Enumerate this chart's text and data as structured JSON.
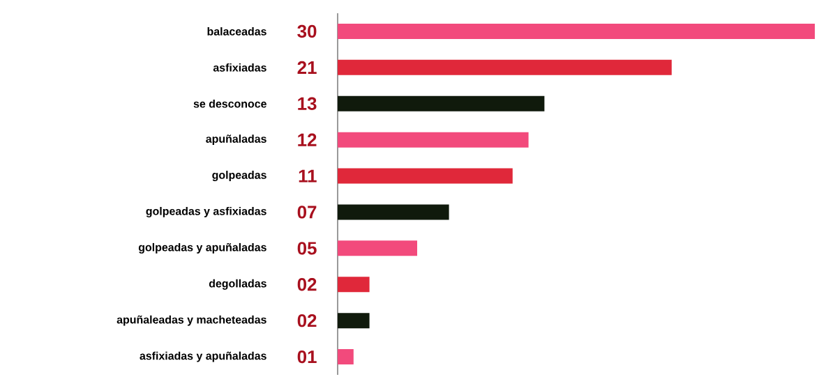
{
  "chart_data": {
    "type": "bar",
    "orientation": "horizontal",
    "categories": [
      "balaceadas",
      "asfixiadas",
      "se desconoce",
      "apuñaladas",
      "golpeadas",
      "golpeadas y asfixiadas",
      "golpeadas y apuñaladas",
      "degolladas",
      "apuñaleadas y macheteadas",
      "asfixiadas y apuñaladas"
    ],
    "values": [
      30,
      21,
      13,
      12,
      11,
      7,
      5,
      2,
      2,
      1
    ],
    "value_labels": [
      "30",
      "21",
      "13",
      "12",
      "11",
      "07",
      "05",
      "02",
      "02",
      "01"
    ],
    "colors": [
      "#f24a7c",
      "#e0283a",
      "#101a0c",
      "#f24a7c",
      "#e0283a",
      "#101a0c",
      "#f24a7c",
      "#e0283a",
      "#101a0c",
      "#f24a7c"
    ],
    "xlim": [
      0,
      30
    ]
  }
}
